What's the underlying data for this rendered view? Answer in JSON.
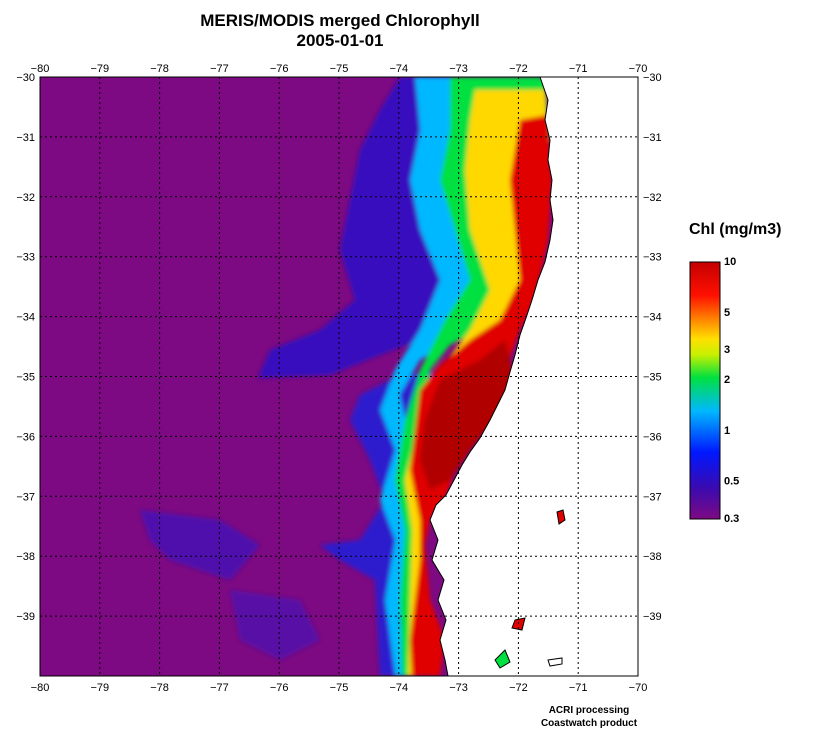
{
  "header": {
    "title": "MERIS/MODIS merged Chlorophyll",
    "date": "2005-01-01"
  },
  "map": {
    "lon_range": [
      -80,
      -70
    ],
    "lat_range": [
      -30,
      -40
    ],
    "lon_ticks": [
      "−80",
      "−79",
      "−78",
      "−77",
      "−76",
      "−75",
      "−74",
      "−73",
      "−72",
      "−71",
      "−70"
    ],
    "lat_ticks": [
      "−30",
      "−31",
      "−32",
      "−33",
      "−34",
      "−35",
      "−36",
      "−37",
      "−38",
      "−39"
    ],
    "grid": "dotted",
    "colors": {
      "ocean_low": "#7d0a82",
      "land": "#ffffff",
      "coastline": "#000000"
    }
  },
  "legend": {
    "title": "Chl (mg/m3)",
    "labels": [
      "10",
      "5",
      "3",
      "2",
      "1",
      "0.5",
      "0.3"
    ],
    "scale": "log",
    "colors": [
      "#c40000",
      "#ff3b00",
      "#ffe000",
      "#00e040",
      "#00b8ff",
      "#0018ff",
      "#7d0a82"
    ]
  },
  "credits": {
    "line1": "ACRI processing",
    "line2": "Coastwatch product"
  }
}
